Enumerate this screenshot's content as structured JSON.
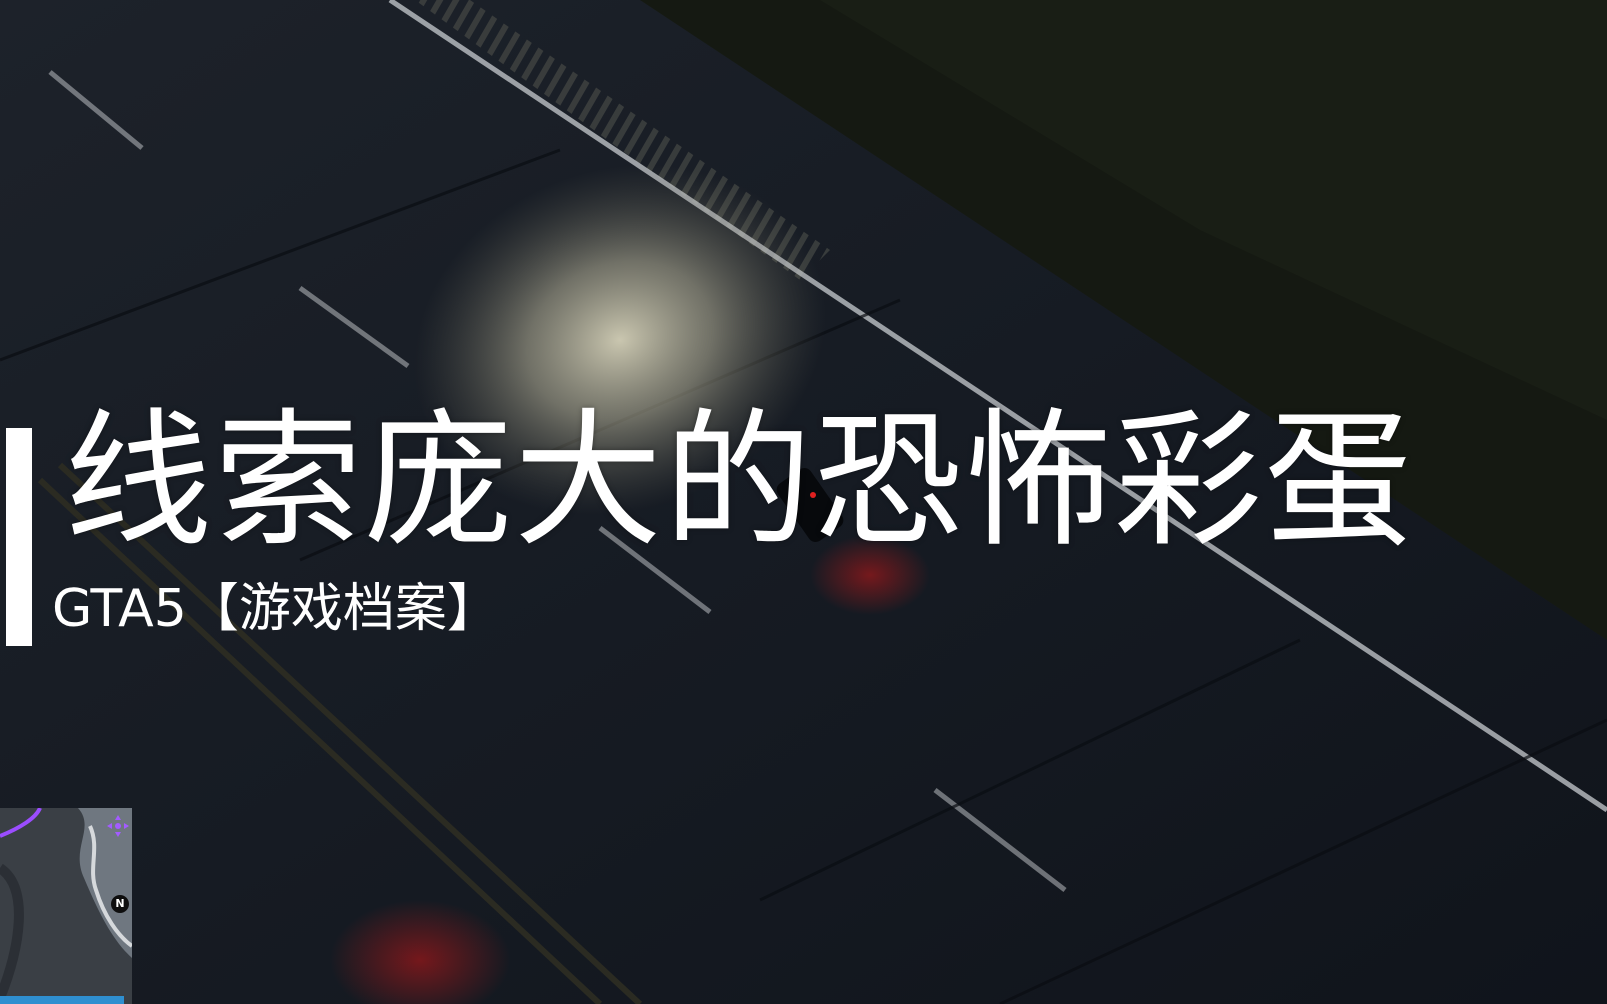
{
  "title": {
    "main": "线索庞大的恐怖彩蛋",
    "subtitle": "GTA5【游戏档案】"
  },
  "minimap": {
    "north_label": "N",
    "route_color": "#9b4dff",
    "health_bar_color": "#2f8fd0"
  },
  "colors": {
    "text": "#ffffff",
    "road": "#151a22",
    "headlight": "#d8d3b8",
    "taillight": "#c41818"
  },
  "icons": {
    "waypoint": "waypoint-icon",
    "north": "north-icon"
  }
}
